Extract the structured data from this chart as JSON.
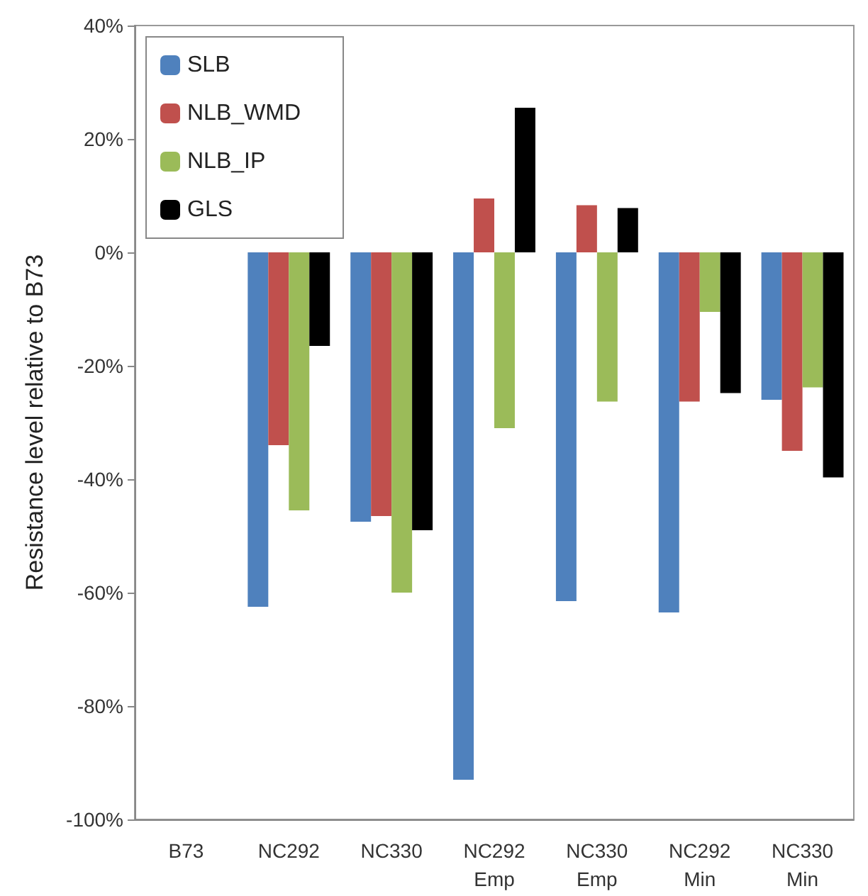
{
  "chart_data": {
    "type": "bar",
    "ylabel": "Resistance level relative to B73",
    "categories": [
      "B73",
      "NC292",
      "NC330",
      "NC292\nEmp",
      "NC330\nEmp",
      "NC292\nMin",
      "NC330\nMin"
    ],
    "series": [
      {
        "name": "SLB",
        "color": "#4f81bd",
        "values": [
          0,
          -62.5,
          -47.5,
          -93,
          -61.5,
          -63.5,
          -26
        ]
      },
      {
        "name": "NLB_WMD",
        "color": "#c0504d",
        "values": [
          0,
          -34,
          -46.5,
          9.5,
          8.3,
          -26.3,
          -35
        ]
      },
      {
        "name": "NLB_IP",
        "color": "#9bbb59",
        "values": [
          0,
          -45.5,
          -60,
          -31,
          -26.3,
          -10.5,
          -23.8
        ]
      },
      {
        "name": "GLS",
        "color": "#000000",
        "values": [
          0,
          -16.5,
          -49,
          25.5,
          7.8,
          -24.8,
          -39.7
        ]
      }
    ],
    "ylim": [
      -100,
      40
    ],
    "yticks": [
      {
        "value": -100,
        "label": "-100%"
      },
      {
        "value": -80,
        "label": "-80%"
      },
      {
        "value": -60,
        "label": "-60%"
      },
      {
        "value": -40,
        "label": "-40%"
      },
      {
        "value": -20,
        "label": "-20%"
      },
      {
        "value": 0,
        "label": "0%"
      },
      {
        "value": 20,
        "label": "20%"
      },
      {
        "value": 40,
        "label": "40%"
      }
    ],
    "grid": false,
    "legend": "top left"
  }
}
